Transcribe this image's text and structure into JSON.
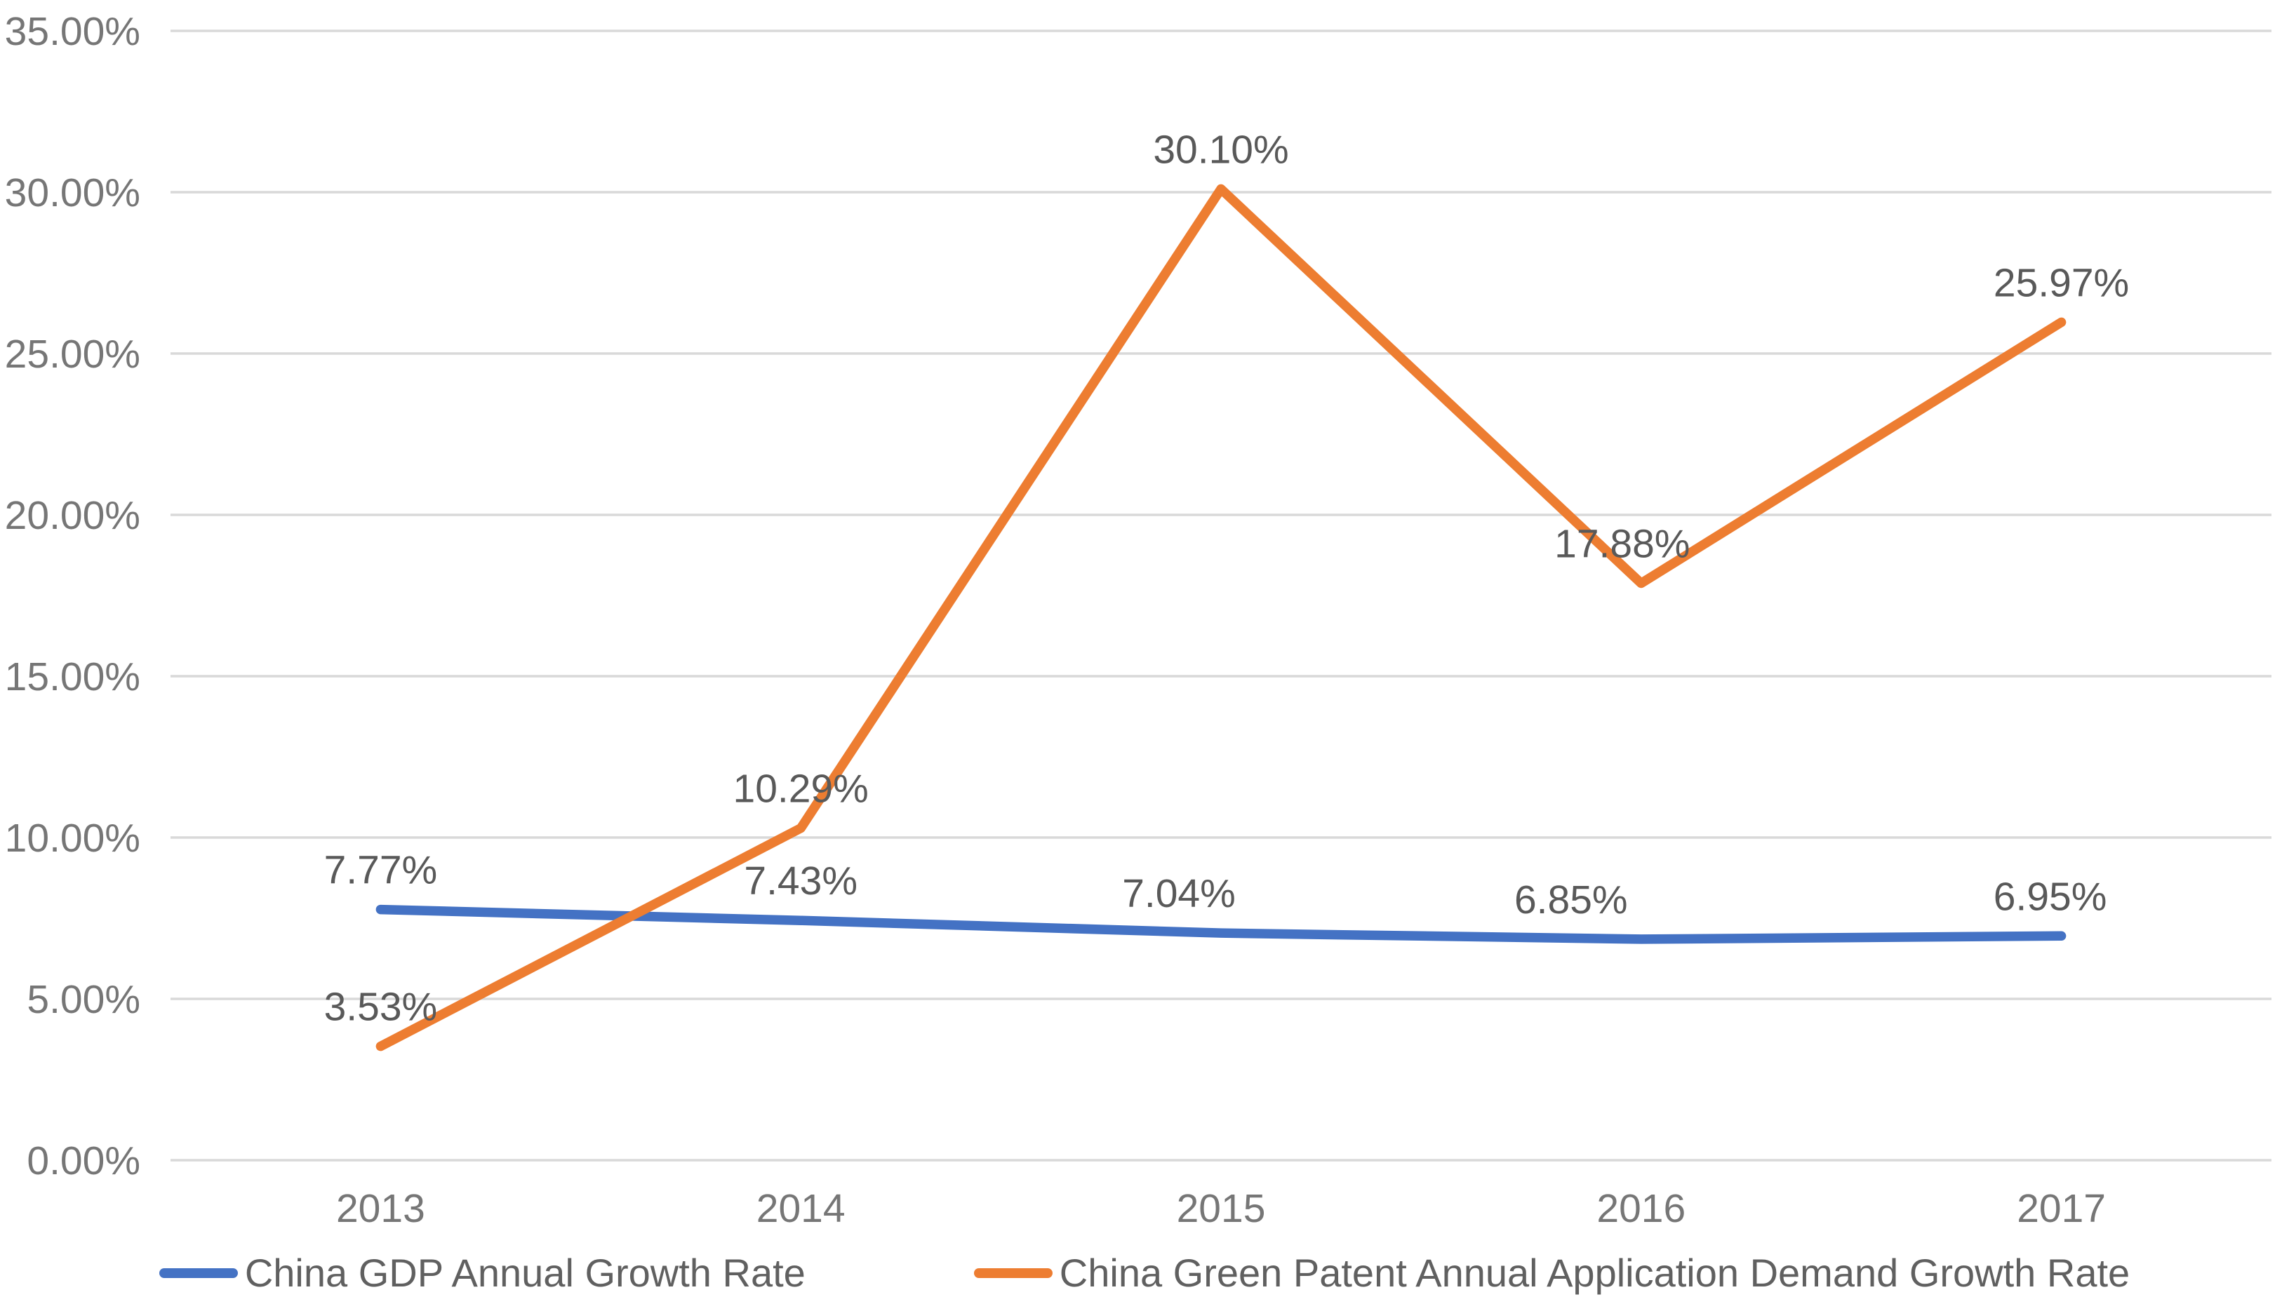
{
  "chart_data": {
    "type": "line",
    "title": "",
    "xlabel": "",
    "ylabel": "",
    "categories": [
      "2013",
      "2014",
      "2015",
      "2016",
      "2017"
    ],
    "series": [
      {
        "name": "China GDP Annual Growth Rate",
        "color": "#4472C4",
        "values": [
          7.77,
          7.43,
          7.04,
          6.85,
          6.95
        ],
        "point_labels": [
          "7.77%",
          "7.43%",
          "7.04%",
          "6.85%",
          "6.95%"
        ]
      },
      {
        "name": "China Green Patent Annual Application Demand Growth Rate",
        "color": "#ED7D31",
        "values": [
          3.53,
          10.29,
          30.1,
          17.88,
          25.97
        ],
        "point_labels": [
          "3.53%",
          "10.29%",
          "30.10%",
          "17.88%",
          "25.97%"
        ]
      }
    ],
    "y_axis": {
      "tick_labels": [
        "35.00%",
        "30.00%",
        "25.00%",
        "20.00%",
        "15.00%",
        "10.00%",
        "5.00%",
        "0.00%"
      ],
      "tick_values": [
        35,
        30,
        25,
        20,
        15,
        10,
        5,
        0
      ],
      "ylim": [
        0,
        35
      ],
      "unit": "percent"
    },
    "grid": true,
    "legend_position": "bottom",
    "colors": {
      "gridline": "#D9D9D9",
      "axis_label": "#767676",
      "data_label": "#595959",
      "background": "#FFFFFF"
    }
  }
}
